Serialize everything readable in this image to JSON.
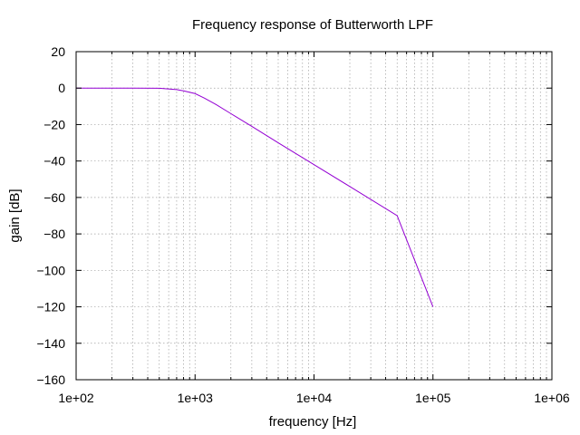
{
  "chart_data": {
    "type": "line",
    "title": "Frequency response of Butterworth LPF",
    "xlabel": "frequency [Hz]",
    "ylabel": "gain [dB]",
    "xscale": "log",
    "xlim": [
      100,
      1000000
    ],
    "ylim": [
      -160,
      20
    ],
    "xticks": [
      100,
      1000,
      10000,
      100000,
      1000000
    ],
    "xtick_labels": [
      "1e+02",
      "1e+03",
      "1e+04",
      "1e+05",
      "1e+06"
    ],
    "yticks": [
      20,
      0,
      -20,
      -40,
      -60,
      -80,
      -100,
      -120,
      -140,
      -160
    ],
    "ytick_labels": [
      "20",
      "0",
      "−20",
      "−40",
      "−60",
      "−80",
      "−100",
      "−120",
      "−140",
      "−160"
    ],
    "grid": true,
    "series": [
      {
        "color": "#9400d3",
        "x": [
          100,
          200,
          300,
          500,
          700,
          800,
          1000,
          1200,
          1500,
          2000,
          3000,
          5000,
          10000,
          20000,
          50000,
          100000
        ],
        "y": [
          0,
          0,
          0,
          -0.1,
          -0.8,
          -1.5,
          -3,
          -5.5,
          -9,
          -14,
          -21,
          -30,
          -42,
          -54,
          -70,
          -120
        ]
      }
    ]
  }
}
